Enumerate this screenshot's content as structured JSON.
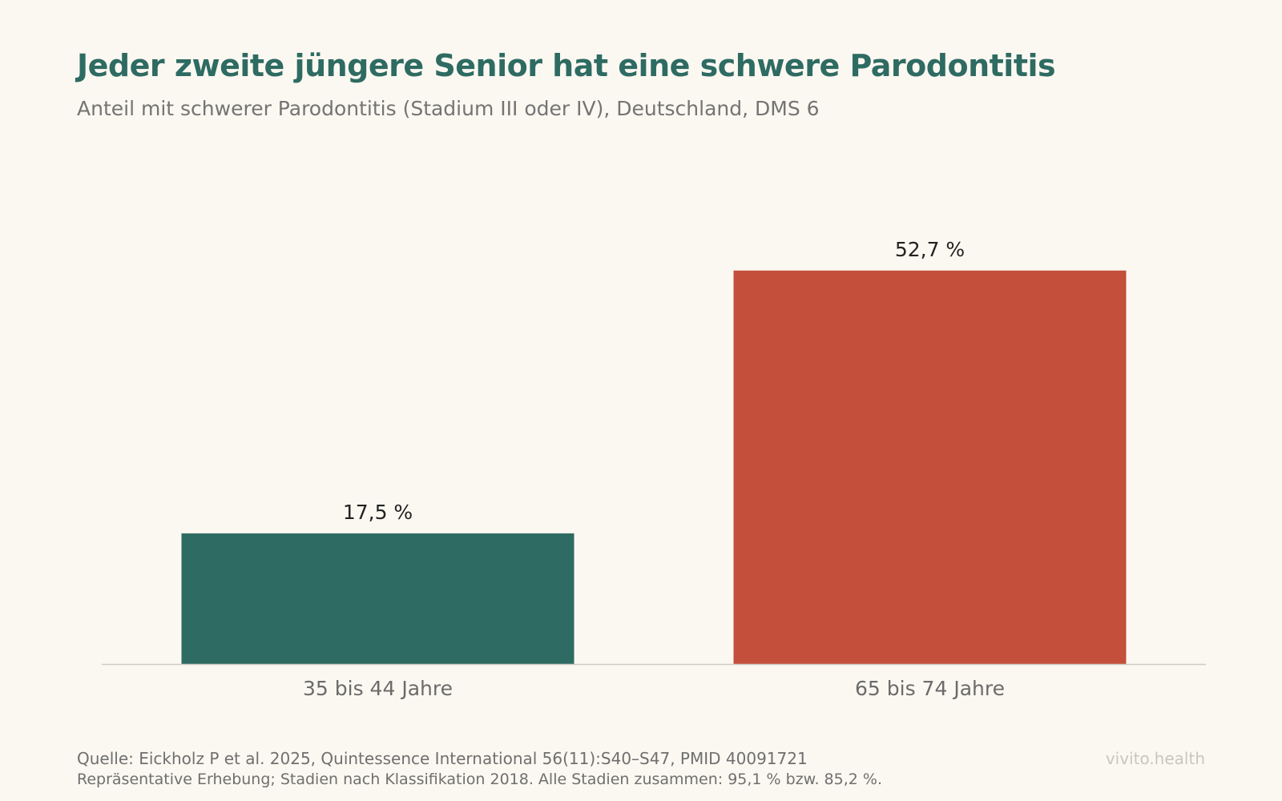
{
  "header": {
    "title": "Jeder zweite jüngere Senior hat eine schwere Parodontitis",
    "subtitle": "Anteil mit schwerer Parodontitis (Stadium III oder IV), Deutschland, DMS 6"
  },
  "footer": {
    "source": "Quelle: Eickholz P et al. 2025, Quintessence International 56(11):S40–S47, PMID 40091721",
    "note": "Repräsentative Erhebung; Stadien nach Klassifikation 2018. Alle Stadien zusammen: 95,1 % bzw. 85,2 %.",
    "brand": "vivito.health"
  },
  "chart_data": {
    "type": "bar",
    "categories": [
      "35 bis 44 Jahre",
      "65 bis 74 Jahre"
    ],
    "values": [
      17.5,
      52.7
    ],
    "value_labels": [
      "17,5 %",
      "52,7 %"
    ],
    "colors": [
      "#2e6b62",
      "#c44f3b"
    ],
    "ylim": [
      0,
      56
    ],
    "grid": false,
    "legend": "none"
  }
}
